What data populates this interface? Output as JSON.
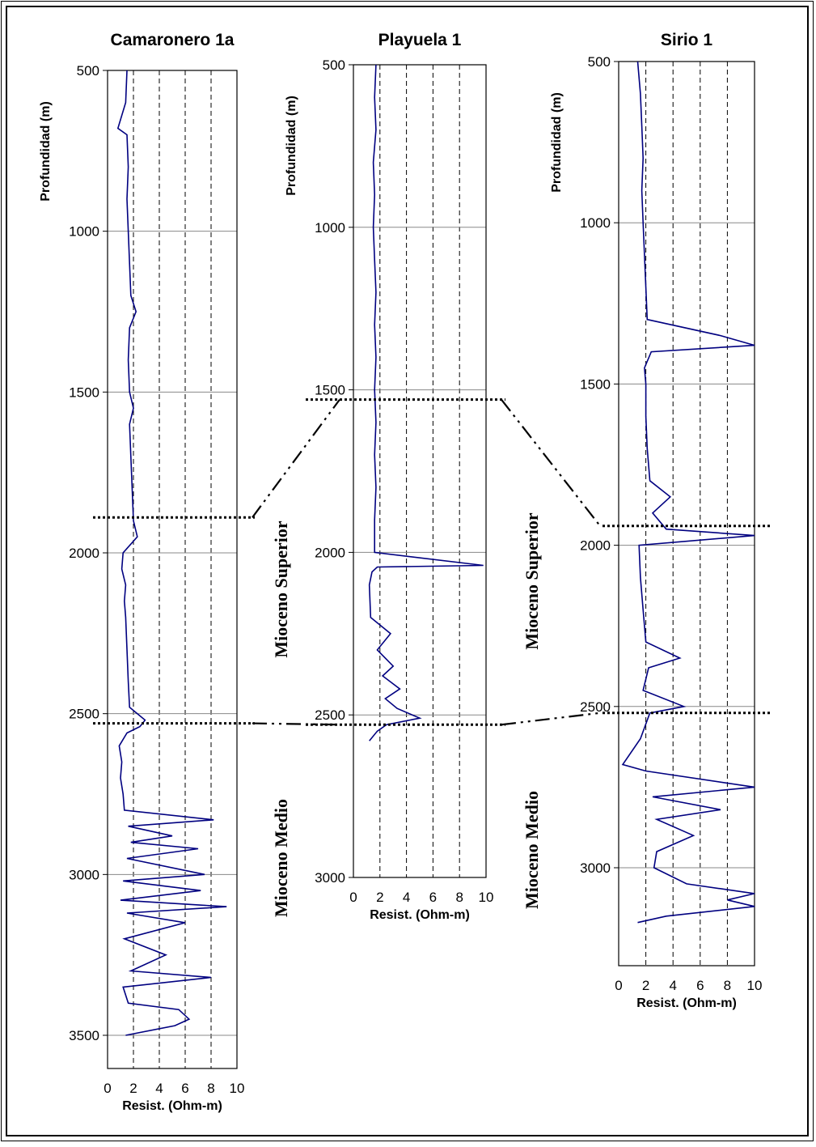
{
  "chart_data": {
    "type": "line",
    "x_unit": "Resist. (Ohm-m)",
    "y_unit": "Profundidad (m)",
    "wells": [
      {
        "name": "Camaronero 1a",
        "xlabel": "Resist. (Ohm-m)",
        "ylabel": "Profundidad (m)",
        "xlim": [
          0,
          10
        ],
        "ylim": [
          3500,
          500
        ],
        "x_ticks": [
          0,
          2,
          4,
          6,
          8,
          10
        ],
        "y_ticks": [
          500,
          1000,
          1500,
          2000,
          2500,
          3000,
          3500
        ],
        "series": [
          {
            "color": "#000080",
            "depth": [
              500,
              600,
              680,
              700,
              800,
              900,
              1000,
              1100,
              1200,
              1250,
              1300,
              1400,
              1500,
              1550,
              1600,
              1700,
              1800,
              1900,
              1950,
              2000,
              2050,
              2100,
              2150,
              2200,
              2300,
              2400,
              2480,
              2520,
              2540,
              2560,
              2600,
              2650,
              2700,
              2750,
              2800,
              2830,
              2850,
              2880,
              2900,
              2920,
              2950,
              3000,
              3020,
              3050,
              3080,
              3100,
              3120,
              3150,
              3200,
              3250,
              3300,
              3320,
              3350,
              3400,
              3420,
              3450,
              3470,
              3500
            ],
            "resistivity": [
              1.5,
              1.4,
              0.8,
              1.5,
              1.6,
              1.5,
              1.6,
              1.7,
              1.8,
              2.2,
              1.7,
              1.6,
              1.7,
              2.0,
              1.7,
              1.8,
              1.9,
              2.0,
              2.3,
              1.2,
              1.1,
              1.4,
              1.3,
              1.4,
              1.5,
              1.6,
              1.7,
              2.9,
              2.5,
              1.5,
              0.9,
              1.1,
              1.0,
              1.2,
              1.3,
              8.2,
              1.6,
              5.0,
              1.8,
              7.0,
              1.5,
              7.5,
              1.2,
              7.2,
              1.0,
              9.2,
              1.5,
              6.0,
              1.3,
              4.5,
              1.8,
              8.0,
              1.2,
              1.6,
              5.5,
              6.3,
              5.2,
              1.4
            ]
          }
        ]
      },
      {
        "name": "Playuela 1",
        "xlabel": "Resist. (Ohm-m)",
        "ylabel": "Profundidad (m)",
        "xlim": [
          0,
          10
        ],
        "ylim": [
          3000,
          500
        ],
        "x_ticks": [
          0,
          2,
          4,
          6,
          8,
          10
        ],
        "y_ticks": [
          500,
          1000,
          1500,
          2000,
          2500,
          3000
        ],
        "series": [
          {
            "color": "#000080",
            "depth": [
              500,
              600,
              700,
              800,
              900,
              1000,
              1100,
              1200,
              1300,
              1400,
              1500,
              1600,
              1700,
              1800,
              1900,
              2000,
              2040,
              2045,
              2060,
              2100,
              2200,
              2250,
              2300,
              2350,
              2380,
              2420,
              2450,
              2480,
              2510,
              2530,
              2550,
              2580
            ],
            "resistivity": [
              1.7,
              1.6,
              1.7,
              1.5,
              1.6,
              1.5,
              1.6,
              1.7,
              1.6,
              1.7,
              1.6,
              1.7,
              1.6,
              1.7,
              1.6,
              1.6,
              9.8,
              1.8,
              1.4,
              1.2,
              1.3,
              2.8,
              1.8,
              3.0,
              2.2,
              3.5,
              2.4,
              3.3,
              5.0,
              2.5,
              1.8,
              1.2
            ]
          }
        ]
      },
      {
        "name": "Sirio 1",
        "xlabel": "Resist. (Ohm-m)",
        "ylabel": "Profundidad (m)",
        "xlim": [
          0,
          10
        ],
        "ylim": [
          3200,
          500
        ],
        "x_ticks": [
          0,
          2,
          4,
          6,
          8,
          10
        ],
        "y_ticks": [
          500,
          1000,
          1500,
          2000,
          2500,
          3000
        ],
        "series": [
          {
            "color": "#000080",
            "depth": [
              500,
              600,
              700,
              800,
              900,
              1000,
              1100,
              1200,
              1300,
              1350,
              1380,
              1400,
              1450,
              1500,
              1600,
              1700,
              1800,
              1850,
              1900,
              1950,
              1970,
              2000,
              2100,
              2200,
              2300,
              2350,
              2380,
              2450,
              2500,
              2520,
              2600,
              2680,
              2700,
              2750,
              2780,
              2820,
              2850,
              2900,
              2950,
              3000,
              3050,
              3080,
              3100,
              3120,
              3150,
              3170
            ],
            "resistivity": [
              1.4,
              1.6,
              1.7,
              1.8,
              1.7,
              1.8,
              1.9,
              2.0,
              2.1,
              7.5,
              10.0,
              2.4,
              1.9,
              2.0,
              2.0,
              2.1,
              2.3,
              3.8,
              2.5,
              3.5,
              10.0,
              1.5,
              1.6,
              1.8,
              2.0,
              4.5,
              2.2,
              1.8,
              4.8,
              2.3,
              1.6,
              0.3,
              2.0,
              10.0,
              2.5,
              7.5,
              2.8,
              5.5,
              2.8,
              2.6,
              5.0,
              10.0,
              8.0,
              10.0,
              3.5,
              1.4
            ]
          }
        ]
      }
    ],
    "formation_labels": [
      "Mioceno Superior",
      "Mioceno Medio"
    ],
    "correlation_depths": {
      "top_mioceno_superior": [
        1890,
        1530,
        1940
      ],
      "top_mioceno_medio": [
        2530,
        2530,
        2520
      ]
    }
  }
}
